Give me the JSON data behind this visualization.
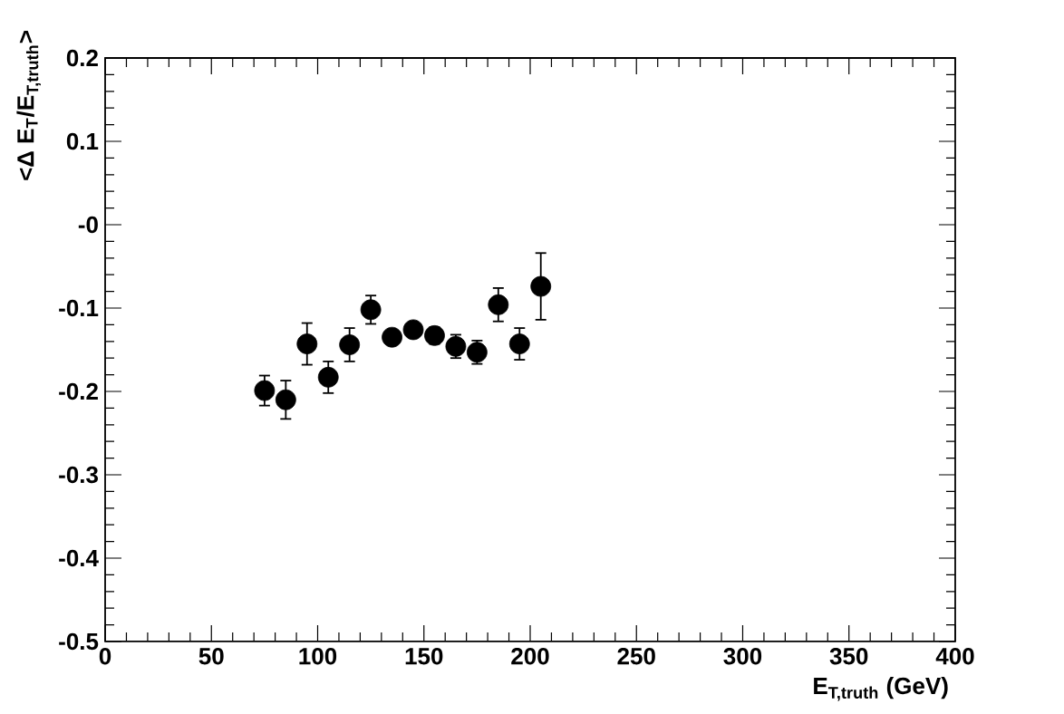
{
  "chart_data": {
    "type": "scatter",
    "xlabel": "E$_{T,truth}$ (GeV)",
    "ylabel": "<Δ E$_{T}$/E$_{T,truth}$>",
    "x": [
      75,
      85,
      95,
      105,
      115,
      125,
      135,
      145,
      155,
      165,
      175,
      185,
      195,
      205
    ],
    "values": [
      -0.199,
      -0.21,
      -0.143,
      -0.183,
      -0.144,
      -0.102,
      -0.135,
      -0.126,
      -0.133,
      -0.146,
      -0.153,
      -0.096,
      -0.143,
      -0.074
    ],
    "errors": [
      0.018,
      0.023,
      0.025,
      0.019,
      0.02,
      0.017,
      0.008,
      0.008,
      0.01,
      0.014,
      0.014,
      0.02,
      0.019,
      0.04
    ],
    "color": "#000000",
    "marker": "circle",
    "xlim": [
      0,
      400
    ],
    "xticks": [
      0,
      50,
      100,
      150,
      200,
      250,
      300,
      350,
      400
    ],
    "ylim": [
      -0.5,
      0.2
    ],
    "yticks": [
      -0.5,
      -0.4,
      -0.3,
      -0.2,
      -0.1,
      {
        "value": 0,
        "label": "-0"
      },
      0.1,
      0.2
    ]
  }
}
